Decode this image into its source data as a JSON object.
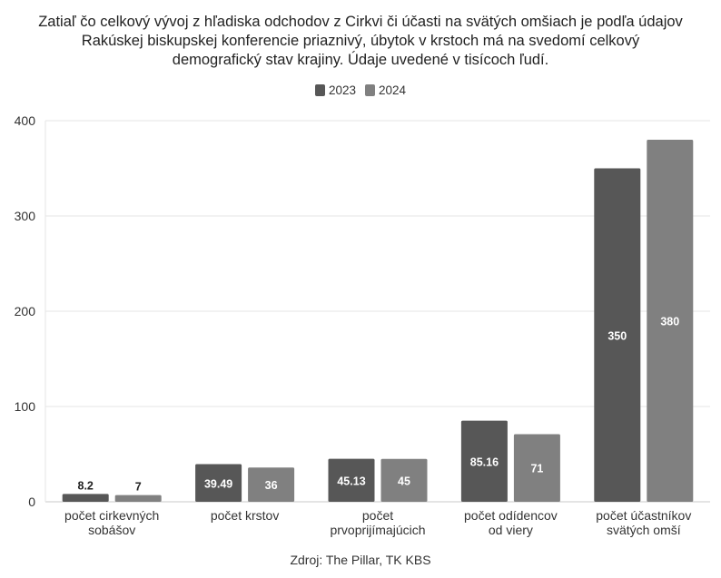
{
  "chart_data": {
    "type": "bar",
    "title_lines": [
      "Zatiaľ čo celkový vývoj z hľadiska odchodov z Cirkvi či účasti na svätých omšiach je podľa údajov",
      "Rakúskej biskupskej konferencie priaznivý, úbytok v krstoch má na svedomí celkový",
      "demografický stav krajiny. Údaje uvedené v tisícoch ľudí."
    ],
    "categories": [
      [
        "počet cirkevných",
        "sobášov"
      ],
      [
        "počet krstov"
      ],
      [
        "počet",
        "prvoprijímajúcich"
      ],
      [
        "počet odídencov",
        "od viery"
      ],
      [
        "počet účastníkov",
        "svätých omší"
      ]
    ],
    "series": [
      {
        "name": "2023",
        "color": "#575757",
        "values": [
          8.2,
          39.49,
          45.13,
          85.16,
          350
        ],
        "labels": [
          "8.2",
          "39.49",
          "45.13",
          "85.16",
          "350"
        ]
      },
      {
        "name": "2024",
        "color": "#808080",
        "values": [
          7,
          36,
          45,
          71,
          380
        ],
        "labels": [
          "7",
          "36",
          "45",
          "71",
          "380"
        ]
      }
    ],
    "ylim": [
      0,
      400
    ],
    "yticks": [
      0,
      100,
      200,
      300,
      400
    ],
    "xlabel": "",
    "ylabel": "",
    "grid": true,
    "legend_position": "top-center",
    "source": "Zdroj: The Pillar, TK KBS"
  }
}
